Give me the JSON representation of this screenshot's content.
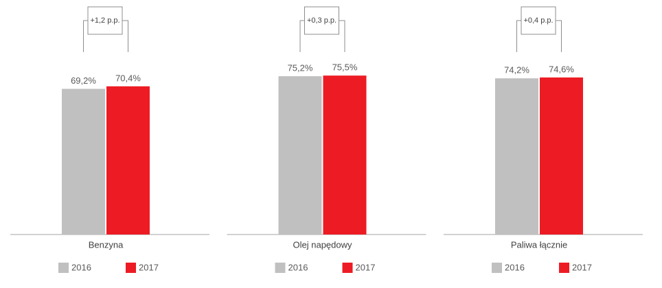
{
  "chart_data": [
    {
      "type": "bar",
      "categories": [
        "Benzyna"
      ],
      "annotation": "+1,2 p.p.",
      "ylim": [
        0,
        100
      ],
      "series": [
        {
          "name": "2016",
          "color": "#c0c0c0",
          "values": [
            69.2
          ],
          "value_labels": [
            "69,2%"
          ]
        },
        {
          "name": "2017",
          "color": "#ed1c24",
          "values": [
            70.4
          ],
          "value_labels": [
            "70,4%"
          ]
        }
      ]
    },
    {
      "type": "bar",
      "categories": [
        "Olej napędowy"
      ],
      "annotation": "+0,3 p.p.",
      "ylim": [
        0,
        100
      ],
      "series": [
        {
          "name": "2016",
          "color": "#c0c0c0",
          "values": [
            75.2
          ],
          "value_labels": [
            "75,2%"
          ]
        },
        {
          "name": "2017",
          "color": "#ed1c24",
          "values": [
            75.5
          ],
          "value_labels": [
            "75,5%"
          ]
        }
      ]
    },
    {
      "type": "bar",
      "categories": [
        "Paliwa łącznie"
      ],
      "annotation": "+0,4 p.p.",
      "ylim": [
        0,
        100
      ],
      "series": [
        {
          "name": "2016",
          "color": "#c0c0c0",
          "values": [
            74.2
          ],
          "value_labels": [
            "74,2%"
          ]
        },
        {
          "name": "2017",
          "color": "#ed1c24",
          "values": [
            74.6
          ],
          "value_labels": [
            "74,6%"
          ]
        }
      ]
    }
  ]
}
